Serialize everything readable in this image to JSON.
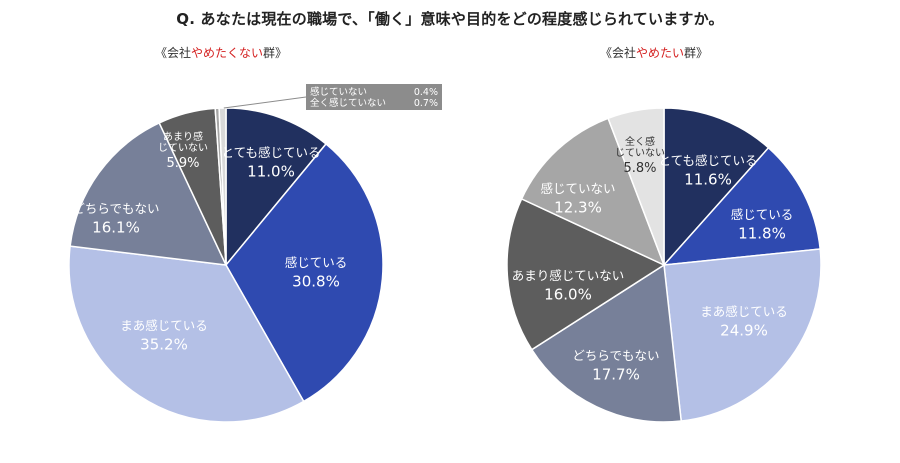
{
  "title": "Q. あなたは現在の職場で、「働く」意味や目的をどの程度感じられていますか。",
  "chart_data": [
    {
      "type": "pie",
      "title_prefix": "《会社",
      "title_highlight": "やめたくない",
      "title_suffix": "群》",
      "start_angle_deg": 0,
      "direction": "clockwise",
      "slices": [
        {
          "label": "とても感じている",
          "value": 11.0,
          "value_text": "11.0%",
          "color": "#21305f",
          "text_color": "#ffffff"
        },
        {
          "label": "感じている",
          "value": 30.8,
          "value_text": "30.8%",
          "color": "#2f4ab0",
          "text_color": "#ffffff"
        },
        {
          "label": "まあ感じている",
          "value": 35.2,
          "value_text": "35.2%",
          "color": "#b4c0e6",
          "text_color": "#ffffff"
        },
        {
          "label": "どちらでもない",
          "value": 16.1,
          "value_text": "16.1%",
          "color": "#778099",
          "text_color": "#ffffff"
        },
        {
          "label": "あまり感じていない",
          "value": 5.9,
          "value_text": "5.9%",
          "color": "#5d5d5d",
          "text_color": "#ffffff"
        },
        {
          "label": "感じていない",
          "value": 0.4,
          "value_text": "0.4%",
          "color": "#a6a6a6",
          "text_color": "#ffffff"
        },
        {
          "label": "全く感じていない",
          "value": 0.7,
          "value_text": "0.7%",
          "color": "#d9d9d9",
          "text_color": "#ffffff"
        }
      ],
      "callout": {
        "rows": [
          {
            "label": "感じていない",
            "value": "0.4%"
          },
          {
            "label": "全く感じていない",
            "value": "0.7%"
          }
        ],
        "background": "#8c8c8c"
      }
    },
    {
      "type": "pie",
      "title_prefix": "《会社",
      "title_highlight": "やめたい",
      "title_suffix": "群》",
      "start_angle_deg": 0,
      "direction": "clockwise",
      "slices": [
        {
          "label": "とても感じている",
          "value": 11.6,
          "value_text": "11.6%",
          "color": "#21305f",
          "text_color": "#ffffff"
        },
        {
          "label": "感じている",
          "value": 11.8,
          "value_text": "11.8%",
          "color": "#2f4ab0",
          "text_color": "#ffffff"
        },
        {
          "label": "まあ感じている",
          "value": 24.9,
          "value_text": "24.9%",
          "color": "#b4c0e6",
          "text_color": "#ffffff"
        },
        {
          "label": "どちらでもない",
          "value": 17.7,
          "value_text": "17.7%",
          "color": "#778099",
          "text_color": "#ffffff"
        },
        {
          "label": "あまり感じていない",
          "value": 16.0,
          "value_text": "16.0%",
          "color": "#5d5d5d",
          "text_color": "#ffffff"
        },
        {
          "label": "感じていない",
          "value": 12.3,
          "value_text": "12.3%",
          "color": "#a6a6a6",
          "text_color": "#ffffff"
        },
        {
          "label": "全く感じていない",
          "value": 5.8,
          "value_text": "5.8%",
          "color": "#e3e3e3",
          "text_color": "#333333"
        }
      ]
    }
  ]
}
